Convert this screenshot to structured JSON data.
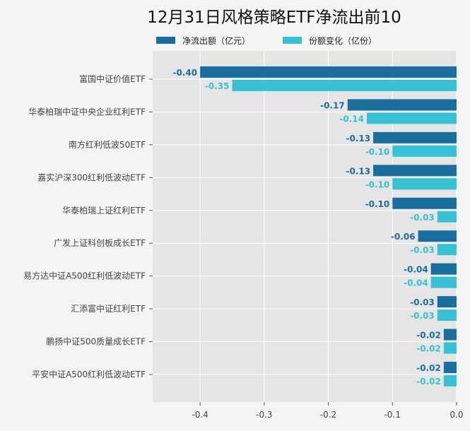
{
  "chart_data": {
    "type": "bar",
    "orientation": "horizontal",
    "title": "12月31日风格策略ETF净流出前10",
    "categories": [
      "富国中证价值ETF",
      "华泰柏瑞中证中央企业红利ETF",
      "南方红利低波50ETF",
      "嘉实沪深300红利低波动ETF",
      "华泰柏瑞上证红利ETF",
      "广发上证科创板成长ETF",
      "易方达中证A500红利低波动ETF",
      "汇添富中证红利ETF",
      "鹏扬中证500质量成长ETF",
      "平安中证A500红利低波动ETF"
    ],
    "series": [
      {
        "name": "净流出额（亿元）",
        "color": "#1a6e9e",
        "values": [
          -0.4,
          -0.17,
          -0.13,
          -0.13,
          -0.1,
          -0.06,
          -0.04,
          -0.03,
          -0.02,
          -0.02
        ]
      },
      {
        "name": "份额变化（亿份）",
        "color": "#38c0d4",
        "values": [
          -0.35,
          -0.14,
          -0.1,
          -0.1,
          -0.03,
          -0.03,
          -0.04,
          -0.03,
          -0.02,
          -0.02
        ]
      }
    ],
    "xticks": [
      "-0.4",
      "-0.3",
      "-0.2",
      "-0.1",
      "0.0"
    ],
    "xtick_values": [
      -0.4,
      -0.3,
      -0.2,
      -0.1,
      0.0
    ],
    "xlim": [
      -0.474,
      0.0
    ],
    "grid": true,
    "legend_position": "top"
  }
}
